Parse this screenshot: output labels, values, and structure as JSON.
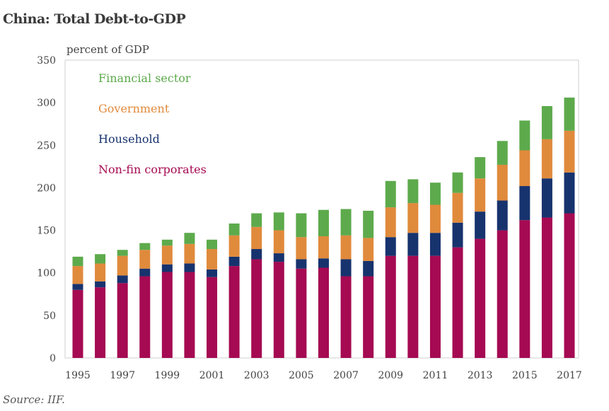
{
  "chart_data": {
    "type": "bar",
    "stacked": true,
    "title": "China: Total Debt-to-GDP",
    "ylabel": "percent of GDP",
    "xlabel": "",
    "source": "Source: IIF.",
    "ylim": [
      0,
      350
    ],
    "yticks": [
      0,
      50,
      100,
      150,
      200,
      250,
      300,
      350
    ],
    "x": [
      1995,
      1996,
      1997,
      1998,
      1999,
      2000,
      2001,
      2002,
      2003,
      2004,
      2005,
      2006,
      2007,
      2008,
      2009,
      2010,
      2011,
      2012,
      2013,
      2014,
      2015,
      2016,
      2017
    ],
    "xtick_labels": [
      "1995",
      "1997",
      "1999",
      "2001",
      "2003",
      "2005",
      "2007",
      "2009",
      "2011",
      "2013",
      "2015",
      "2017"
    ],
    "legend_order": [
      "Financial sector",
      "Government",
      "Household",
      "Non-fin corporates"
    ],
    "series": [
      {
        "name": "Non-fin corporates",
        "color": "#a50a52",
        "values": [
          80,
          83,
          88,
          96,
          101,
          101,
          95,
          108,
          116,
          113,
          105,
          106,
          96,
          96,
          120,
          120,
          120,
          130,
          140,
          150,
          162,
          165,
          170
        ]
      },
      {
        "name": "Household",
        "color": "#17336e",
        "values": [
          7,
          7,
          9,
          9,
          9,
          10,
          9,
          11,
          12,
          10,
          11,
          11,
          20,
          18,
          22,
          27,
          27,
          29,
          32,
          35,
          40,
          46,
          48
        ]
      },
      {
        "name": "Government",
        "color": "#e08a3c",
        "values": [
          21,
          21,
          23,
          22,
          22,
          23,
          24,
          25,
          26,
          27,
          26,
          26,
          28,
          27,
          35,
          35,
          33,
          35,
          39,
          42,
          42,
          46,
          49
        ]
      },
      {
        "name": "Financial sector",
        "color": "#5daa4c",
        "values": [
          11,
          11,
          7,
          8,
          7,
          13,
          11,
          14,
          16,
          21,
          28,
          31,
          31,
          32,
          31,
          28,
          26,
          24,
          25,
          28,
          35,
          39,
          39
        ]
      }
    ]
  }
}
